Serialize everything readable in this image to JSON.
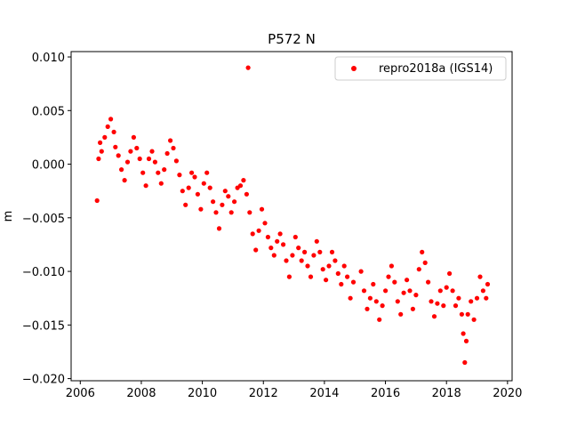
{
  "chart_data": {
    "type": "scatter",
    "title": "P572 N",
    "xlabel": "",
    "ylabel": "m",
    "xlim": [
      2005.7,
      2020.15
    ],
    "ylim": [
      -0.0202,
      0.0105
    ],
    "x_ticks": [
      2006,
      2008,
      2010,
      2012,
      2014,
      2016,
      2018,
      2020
    ],
    "x_tick_labels": [
      "2006",
      "2008",
      "2010",
      "2012",
      "2014",
      "2016",
      "2018",
      "2020"
    ],
    "y_ticks": [
      -0.02,
      -0.015,
      -0.01,
      -0.005,
      0.0,
      0.005,
      0.01
    ],
    "y_tick_labels": [
      "−0.020",
      "−0.015",
      "−0.010",
      "−0.005",
      "0.000",
      "0.005",
      "0.010"
    ],
    "grid": false,
    "legend_position": "top-right",
    "colors": {
      "series": "#ff0000",
      "axes": "#000000",
      "background": "#ffffff"
    },
    "series": [
      {
        "name": "repro2018a (IGS14)",
        "marker": "circle",
        "x": [
          2006.55,
          2006.6,
          2006.65,
          2006.7,
          2006.8,
          2006.9,
          2007.0,
          2007.1,
          2007.15,
          2007.25,
          2007.35,
          2007.45,
          2007.55,
          2007.65,
          2007.75,
          2007.85,
          2007.95,
          2008.05,
          2008.15,
          2008.25,
          2008.35,
          2008.45,
          2008.55,
          2008.65,
          2008.75,
          2008.85,
          2008.95,
          2009.05,
          2009.15,
          2009.25,
          2009.35,
          2009.45,
          2009.55,
          2009.65,
          2009.75,
          2009.85,
          2009.95,
          2010.05,
          2010.15,
          2010.25,
          2010.35,
          2010.45,
          2010.55,
          2010.65,
          2010.75,
          2010.85,
          2010.95,
          2011.05,
          2011.15,
          2011.25,
          2011.35,
          2011.45,
          2011.5,
          2011.55,
          2011.65,
          2011.75,
          2011.85,
          2011.95,
          2012.05,
          2012.15,
          2012.25,
          2012.35,
          2012.45,
          2012.55,
          2012.65,
          2012.75,
          2012.85,
          2012.95,
          2013.05,
          2013.15,
          2013.25,
          2013.35,
          2013.45,
          2013.55,
          2013.65,
          2013.75,
          2013.85,
          2013.95,
          2014.05,
          2014.15,
          2014.25,
          2014.35,
          2014.45,
          2014.55,
          2014.65,
          2014.75,
          2014.85,
          2014.95,
          2015.2,
          2015.3,
          2015.4,
          2015.5,
          2015.6,
          2015.7,
          2015.8,
          2015.9,
          2016.0,
          2016.1,
          2016.2,
          2016.3,
          2016.4,
          2016.5,
          2016.6,
          2016.7,
          2016.8,
          2016.9,
          2017.0,
          2017.1,
          2017.2,
          2017.3,
          2017.4,
          2017.5,
          2017.6,
          2017.7,
          2017.8,
          2017.9,
          2018.0,
          2018.1,
          2018.2,
          2018.3,
          2018.4,
          2018.5,
          2018.55,
          2018.6,
          2018.65,
          2018.7,
          2018.8,
          2018.9,
          2019.0,
          2019.1,
          2019.2,
          2019.3,
          2019.35
        ],
        "y": [
          -0.0034,
          0.0005,
          0.002,
          0.0012,
          0.0025,
          0.0035,
          0.0042,
          0.003,
          0.0016,
          0.0008,
          -0.0005,
          -0.0015,
          0.0002,
          0.0012,
          0.0025,
          0.0015,
          0.0005,
          -0.0008,
          -0.002,
          0.0005,
          0.0012,
          0.0002,
          -0.0008,
          -0.0018,
          -0.0005,
          0.001,
          0.0022,
          0.0015,
          0.0003,
          -0.001,
          -0.0025,
          -0.0038,
          -0.0022,
          -0.0008,
          -0.0012,
          -0.0028,
          -0.0042,
          -0.0018,
          -0.0008,
          -0.0022,
          -0.0035,
          -0.0045,
          -0.006,
          -0.0038,
          -0.0025,
          -0.003,
          -0.0045,
          -0.0035,
          -0.0022,
          -0.002,
          -0.0015,
          -0.0028,
          0.009,
          -0.0045,
          -0.0065,
          -0.008,
          -0.0062,
          -0.0042,
          -0.0055,
          -0.0068,
          -0.0078,
          -0.0085,
          -0.0072,
          -0.0065,
          -0.0075,
          -0.009,
          -0.0105,
          -0.0085,
          -0.0068,
          -0.0078,
          -0.009,
          -0.0082,
          -0.0095,
          -0.0105,
          -0.0085,
          -0.0072,
          -0.0082,
          -0.0098,
          -0.0108,
          -0.0095,
          -0.0082,
          -0.009,
          -0.0102,
          -0.0112,
          -0.0095,
          -0.0105,
          -0.0125,
          -0.011,
          -0.01,
          -0.0118,
          -0.0135,
          -0.0125,
          -0.0112,
          -0.0128,
          -0.0145,
          -0.0132,
          -0.0118,
          -0.0105,
          -0.0095,
          -0.011,
          -0.0128,
          -0.014,
          -0.012,
          -0.0108,
          -0.0118,
          -0.0135,
          -0.0122,
          -0.0098,
          -0.0082,
          -0.0092,
          -0.011,
          -0.0128,
          -0.0142,
          -0.013,
          -0.0118,
          -0.0132,
          -0.0115,
          -0.0102,
          -0.0118,
          -0.0132,
          -0.0125,
          -0.014,
          -0.0158,
          -0.0185,
          -0.0165,
          -0.014,
          -0.0128,
          -0.0145,
          -0.0125,
          -0.0105,
          -0.0118,
          -0.0125,
          -0.0112
        ]
      }
    ]
  }
}
